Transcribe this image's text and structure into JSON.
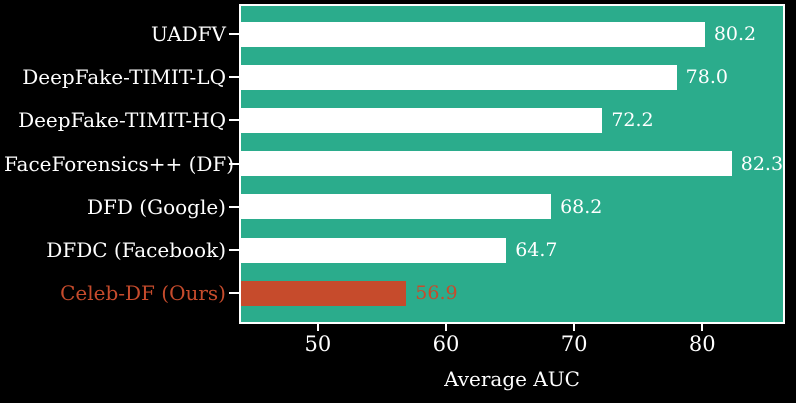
{
  "chart_data": {
    "type": "bar",
    "orientation": "horizontal",
    "categories": [
      "UADFV",
      "DeepFake-TIMIT-LQ",
      "DeepFake-TIMIT-HQ",
      "FaceForensics++ (DF)",
      "DFD (Google)",
      "DFDC (Facebook)",
      "Celeb-DF (Ours)"
    ],
    "values": [
      80.2,
      78.0,
      72.2,
      82.3,
      68.2,
      64.7,
      56.9
    ],
    "value_labels": [
      "80.2",
      "78.0",
      "72.2",
      "82.3",
      "68.2",
      "64.7",
      "56.9"
    ],
    "highlight_index": 6,
    "title": "",
    "xlabel": "Average AUC",
    "ylabel": "",
    "x_ticks": [
      50,
      60,
      70,
      80
    ],
    "xlim": [
      44,
      86.3
    ],
    "grid": false,
    "legend": "none",
    "colors": {
      "figure_background": "#000000",
      "plot_background": "#2bac8c",
      "bar_default": "#ffffff",
      "bar_highlight": "#c64b2c",
      "category_label_default": "#ffffff",
      "category_label_highlight": "#c64b2c",
      "value_label_default": "#ffffff",
      "value_label_highlight": "#c64b2c",
      "spine": "#ffffff",
      "tick": "#ffffff"
    }
  }
}
